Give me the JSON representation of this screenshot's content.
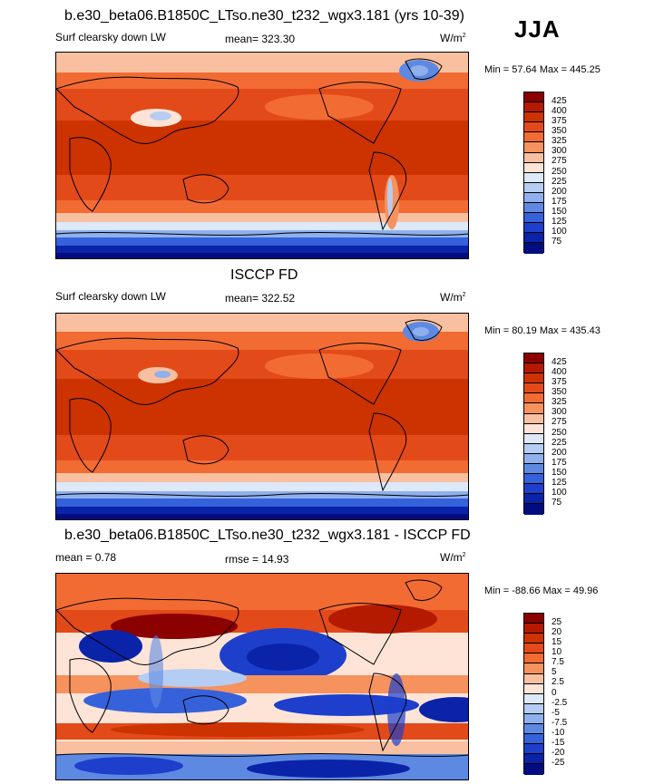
{
  "season": "JJA",
  "panels": [
    {
      "title": "b.e30_beta06.B1850C_LTso.ne30_t232_wgx3.181 (yrs 10-39)",
      "left_label": "Surf clearsky down LW",
      "center_label": "mean= 323.30",
      "units": "W/m",
      "units_sup": "2",
      "minmax": "Min =  57.64 Max = 445.25",
      "colorbar_ticks": [
        "425",
        "400",
        "375",
        "350",
        "325",
        "300",
        "275",
        "250",
        "225",
        "200",
        "175",
        "150",
        "125",
        "100",
        "75"
      ]
    },
    {
      "title": "ISCCP FD",
      "left_label": "Surf clearsky down LW",
      "center_label": "mean= 322.52",
      "units": "W/m",
      "units_sup": "2",
      "minmax": "Min =  80.19 Max = 435.43",
      "colorbar_ticks": [
        "425",
        "400",
        "375",
        "350",
        "325",
        "300",
        "275",
        "250",
        "225",
        "200",
        "175",
        "150",
        "125",
        "100",
        "75"
      ]
    },
    {
      "title": "b.e30_beta06.B1850C_LTso.ne30_t232_wgx3.181 - ISCCP FD",
      "left_label": "mean =   0.78",
      "center_label": "rmse =  14.93",
      "units": "W/m",
      "units_sup": "2",
      "minmax": "Min = -88.66 Max =  49.96",
      "colorbar_ticks": [
        "25",
        "20",
        "15",
        "10",
        "7.5",
        "5",
        "2.5",
        "0",
        "-2.5",
        "-5",
        "-7.5",
        "-10",
        "-15",
        "-20",
        "-25"
      ]
    }
  ],
  "colors": {
    "abs_colorbar": [
      "#8b0000",
      "#b31a00",
      "#cc3300",
      "#e34a1a",
      "#f26b33",
      "#f5925e",
      "#f8c0a0",
      "#fde4d6",
      "#dde8f8",
      "#b5cdf2",
      "#8fb0ec",
      "#5d89e2",
      "#3562db",
      "#1d3fcc",
      "#0a23a8",
      "#000c80"
    ],
    "diff_colorbar": [
      "#8b0000",
      "#b31a00",
      "#cc3300",
      "#e34a1a",
      "#f26b33",
      "#f5925e",
      "#f8c0a0",
      "#fde4d6",
      "#dde8f8",
      "#b5cdf2",
      "#8fb0ec",
      "#5d89e2",
      "#3562db",
      "#1d3fcc",
      "#0a23a8",
      "#000c80"
    ]
  }
}
